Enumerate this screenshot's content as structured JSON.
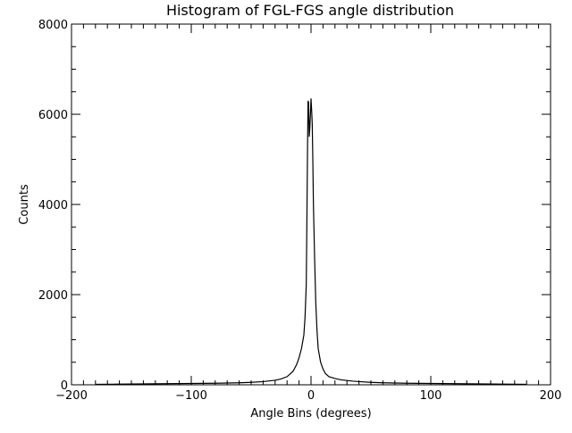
{
  "chart_data": {
    "type": "line",
    "title": "Histogram of FGL-FGS angle distribution",
    "xlabel": "Angle Bins (degrees)",
    "ylabel": "Counts",
    "xlim": [
      -200,
      200
    ],
    "ylim": [
      0,
      8000
    ],
    "x_major_ticks": [
      -200,
      -100,
      0,
      100,
      200
    ],
    "y_major_ticks": [
      0,
      2000,
      4000,
      6000,
      8000
    ],
    "x_tick_labels": [
      "−200",
      "−100",
      "0",
      "100",
      "200"
    ],
    "y_tick_labels": [
      "0",
      "2000",
      "4000",
      "6000",
      "8000"
    ],
    "grid": false,
    "legend": "none",
    "line_color": "#000000",
    "series": [
      {
        "x": [
          -180,
          -160,
          -140,
          -120,
          -100,
          -80,
          -60,
          -50,
          -40,
          -35,
          -30,
          -25,
          -20,
          -15,
          -12,
          -10,
          -8,
          -6,
          -5,
          -4,
          -3.5,
          -3,
          -2.5,
          -2,
          -1.5,
          -1,
          -0.5,
          0,
          0.5,
          1,
          1.5,
          2,
          3,
          4,
          5,
          6,
          8,
          10,
          12,
          15,
          20,
          25,
          30,
          35,
          40,
          50,
          60,
          80,
          100,
          120,
          140,
          160,
          180
        ],
        "values": [
          10,
          15,
          20,
          25,
          30,
          35,
          45,
          55,
          70,
          85,
          100,
          130,
          180,
          300,
          450,
          600,
          800,
          1100,
          1500,
          2200,
          3500,
          5000,
          6300,
          6250,
          5500,
          5700,
          6000,
          6350,
          6100,
          5800,
          5000,
          4000,
          2800,
          1800,
          1200,
          800,
          500,
          350,
          250,
          180,
          140,
          110,
          95,
          80,
          70,
          55,
          45,
          35,
          30,
          25,
          20,
          15,
          10
        ]
      }
    ]
  }
}
